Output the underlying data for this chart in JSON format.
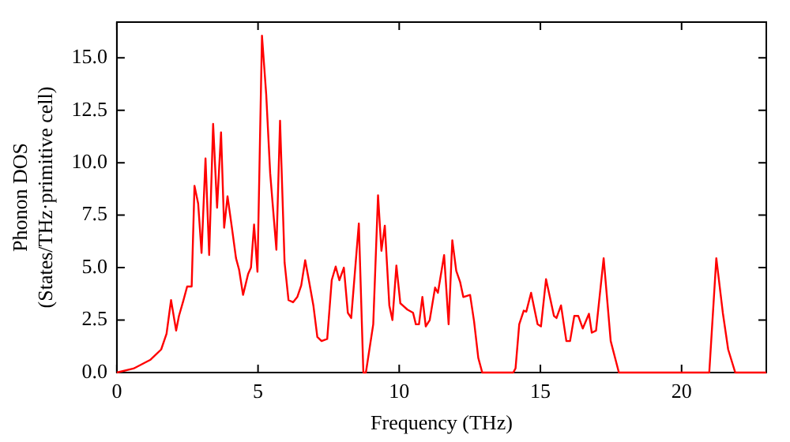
{
  "chart_data": {
    "type": "line",
    "xlabel": "Frequency (THz)",
    "ylabel": "Phonon DOS\n(States/THz·primitive cell)",
    "xlim": [
      0,
      23
    ],
    "ylim": [
      0,
      16.7
    ],
    "xticks": [
      0,
      5,
      10,
      15,
      20
    ],
    "yticks": [
      {
        "value": 0,
        "label": "0.0"
      },
      {
        "value": 2.5,
        "label": "2.5"
      },
      {
        "value": 5,
        "label": "5.0"
      },
      {
        "value": 7.5,
        "label": "7.5"
      },
      {
        "value": 10,
        "label": "10.0"
      },
      {
        "value": 12.5,
        "label": "12.5"
      },
      {
        "value": 15,
        "label": "15.0"
      }
    ],
    "grid": false,
    "legend": false,
    "marker": "none",
    "line_style": "solid",
    "series": [
      {
        "color": "#ff0000",
        "x": [
          0,
          0.59,
          1.18,
          1.57,
          1.76,
          1.92,
          2.1,
          2.2,
          2.35,
          2.49,
          2.65,
          2.75,
          2.88,
          3.0,
          3.14,
          3.27,
          3.41,
          3.55,
          3.69,
          3.8,
          3.92,
          4.08,
          4.22,
          4.33,
          4.47,
          4.65,
          4.75,
          4.86,
          4.98,
          5.14,
          5.29,
          5.43,
          5.65,
          5.78,
          5.94,
          6.08,
          6.24,
          6.39,
          6.53,
          6.67,
          6.82,
          6.96,
          7.1,
          7.25,
          7.45,
          7.61,
          7.75,
          7.88,
          8.04,
          8.18,
          8.3,
          8.57,
          8.73,
          8.82,
          9.08,
          9.25,
          9.37,
          9.49,
          9.65,
          9.76,
          9.9,
          10.04,
          10.29,
          10.49,
          10.59,
          10.7,
          10.82,
          10.94,
          11.08,
          11.27,
          11.37,
          11.59,
          11.75,
          11.88,
          12.02,
          12.16,
          12.27,
          12.51,
          12.65,
          12.8,
          12.94,
          14.04,
          14.12,
          14.25,
          14.41,
          14.5,
          14.67,
          14.9,
          15.02,
          15.2,
          15.48,
          15.57,
          15.73,
          15.92,
          16.05,
          16.2,
          16.34,
          16.5,
          16.72,
          16.82,
          16.97,
          17.24,
          17.49,
          17.78,
          20.98,
          21.23,
          21.46,
          21.65,
          21.9,
          23
        ],
        "values": [
          0,
          0.19,
          0.6,
          1.1,
          1.85,
          3.45,
          2.0,
          2.7,
          3.4,
          4.1,
          4.1,
          8.9,
          8.05,
          5.7,
          10.2,
          5.6,
          11.85,
          7.85,
          11.45,
          6.9,
          8.4,
          6.85,
          5.45,
          4.9,
          3.7,
          4.7,
          5.0,
          7.05,
          4.8,
          16.05,
          13.25,
          9.5,
          5.85,
          12.0,
          5.25,
          3.45,
          3.35,
          3.6,
          4.15,
          5.35,
          4.25,
          3.2,
          1.7,
          1.5,
          1.6,
          4.4,
          5.05,
          4.4,
          5.0,
          2.85,
          2.6,
          7.1,
          0,
          0,
          2.3,
          8.45,
          5.8,
          7.0,
          3.2,
          2.5,
          5.1,
          3.3,
          3.0,
          2.85,
          2.3,
          2.3,
          3.6,
          2.2,
          2.5,
          4.05,
          3.8,
          5.6,
          2.3,
          6.3,
          4.85,
          4.3,
          3.6,
          3.7,
          2.45,
          0.7,
          0,
          0,
          0.2,
          2.3,
          2.95,
          2.9,
          3.8,
          2.3,
          2.2,
          4.45,
          2.7,
          2.6,
          3.2,
          1.5,
          1.5,
          2.7,
          2.7,
          2.1,
          2.8,
          1.9,
          2.0,
          5.45,
          1.5,
          0,
          0,
          5.45,
          2.85,
          1.1,
          0,
          0
        ]
      }
    ]
  }
}
